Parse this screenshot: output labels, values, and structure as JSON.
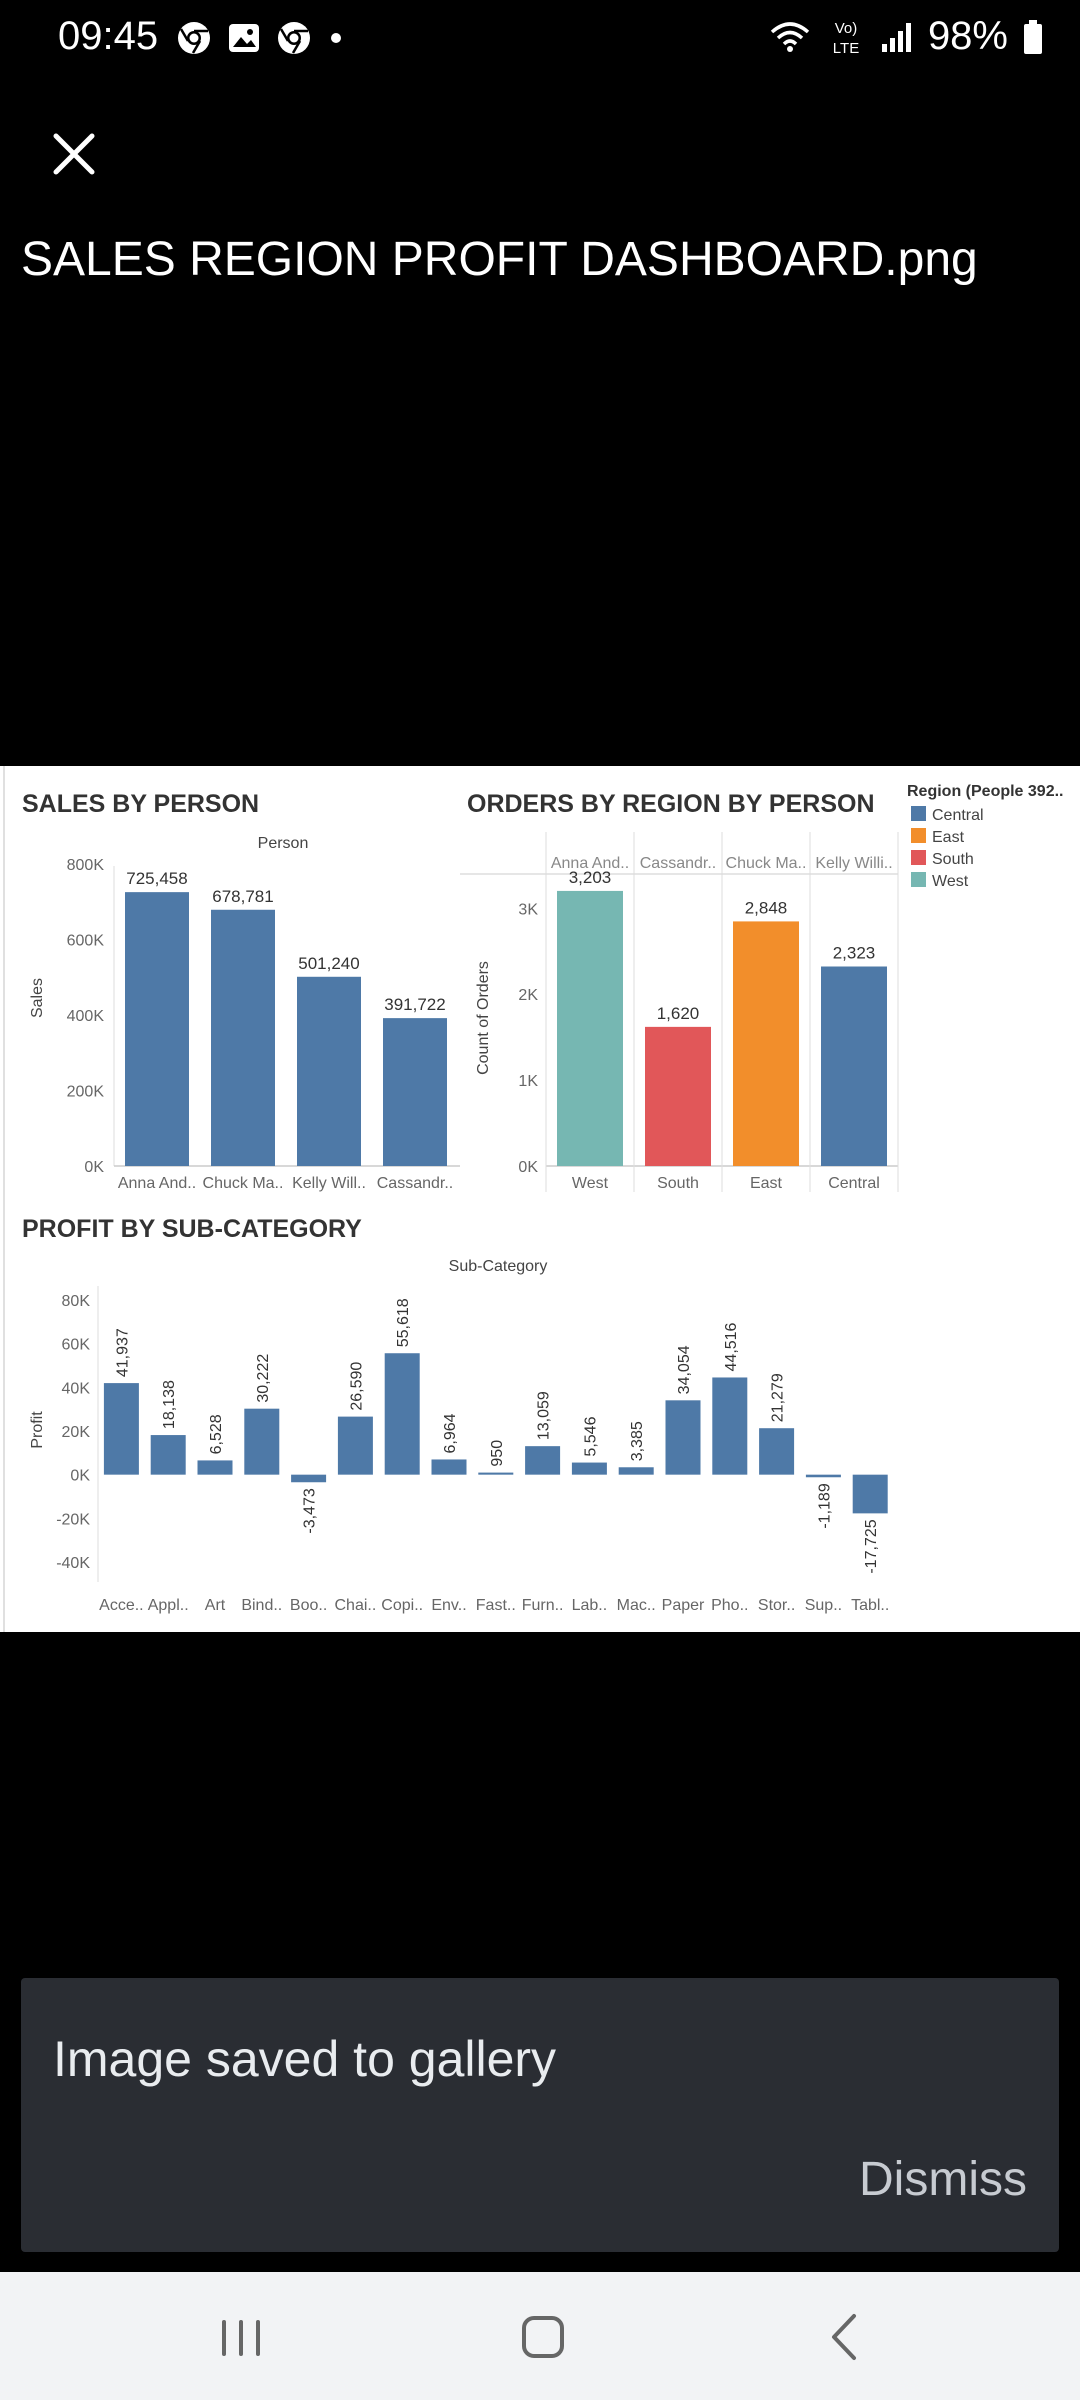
{
  "status_bar": {
    "time": "09:45",
    "battery": "98%",
    "lte": "LTE",
    "lte_top": "Vo)",
    "icons": [
      "chrome-icon",
      "gallery-icon",
      "chrome-icon",
      "dot-icon",
      "wifi-icon",
      "signal-icon",
      "battery-icon"
    ]
  },
  "viewer": {
    "file_name": "SALES REGION PROFIT DASHBOARD.png",
    "close_icon": "close-icon"
  },
  "snackbar": {
    "message": "Image saved to gallery",
    "action": "Dismiss"
  },
  "nav_bar": {
    "icons": [
      "recents-icon",
      "home-icon",
      "back-icon"
    ]
  },
  "colors": {
    "bar_blue": "#4e79a7",
    "teal": "#76b7b2",
    "red": "#e15759",
    "orange": "#f28e2b"
  },
  "chart_data": [
    {
      "type": "bar",
      "title": "SALES BY PERSON",
      "subtitle": "Person",
      "ylabel": "Sales",
      "categories": [
        "Anna And..",
        "Chuck Ma..",
        "Kelly Will..",
        "Cassandr.."
      ],
      "values": [
        725458,
        678781,
        501240,
        391722
      ],
      "value_labels": [
        "725,458",
        "678,781",
        "501,240",
        "391,722"
      ],
      "yticks": [
        "800K",
        "600K",
        "400K",
        "200K",
        "0K"
      ],
      "ylim": [
        0,
        800000
      ]
    },
    {
      "type": "bar",
      "title": "ORDERS BY REGION BY PERSON",
      "ylabel": "Count of Orders",
      "columns": [
        "Anna And..",
        "Cassandr..",
        "Chuck Ma..",
        "Kelly Willi.."
      ],
      "categories": [
        "West",
        "South",
        "East",
        "Central"
      ],
      "values": [
        3203,
        1620,
        2848,
        2323
      ],
      "value_labels": [
        "3,203",
        "1,620",
        "2,848",
        "2,323"
      ],
      "bar_colors": [
        "#76b7b2",
        "#e15759",
        "#f28e2b",
        "#4e79a7"
      ],
      "yticks": [
        "3K",
        "2K",
        "1K",
        "0K"
      ],
      "ylim": [
        0,
        3400
      ],
      "legend": {
        "title": "Region (People 392..",
        "placement": "top-right",
        "items": [
          {
            "name": "Central",
            "color": "#4e79a7"
          },
          {
            "name": "East",
            "color": "#f28e2b"
          },
          {
            "name": "South",
            "color": "#e15759"
          },
          {
            "name": "West",
            "color": "#76b7b2"
          }
        ]
      }
    },
    {
      "type": "bar",
      "title": "PROFIT BY SUB-CATEGORY",
      "subtitle": "Sub-Category",
      "ylabel": "Profit",
      "categories": [
        "Acce..",
        "Appl..",
        "Art",
        "Bind..",
        "Boo..",
        "Chai..",
        "Copi..",
        "Env..",
        "Fast..",
        "Furn..",
        "Lab..",
        "Mac..",
        "Paper",
        "Pho..",
        "Stor..",
        "Sup..",
        "Tabl.."
      ],
      "values": [
        41937,
        18138,
        6528,
        30222,
        -3473,
        26590,
        55618,
        6964,
        950,
        13059,
        5546,
        3385,
        34054,
        44516,
        21279,
        -1189,
        -17725
      ],
      "value_labels": [
        "41,937",
        "18,138",
        "6,528",
        "30,222",
        "-3,473",
        "26,590",
        "55,618",
        "6,964",
        "950",
        "13,059",
        "5,546",
        "3,385",
        "34,054",
        "44,516",
        "21,279",
        "-1,189",
        "-17,725"
      ],
      "yticks": [
        "80K",
        "60K",
        "40K",
        "20K",
        "0K",
        "-20K",
        "-40K"
      ],
      "ylim": [
        -40000,
        80000
      ]
    }
  ]
}
